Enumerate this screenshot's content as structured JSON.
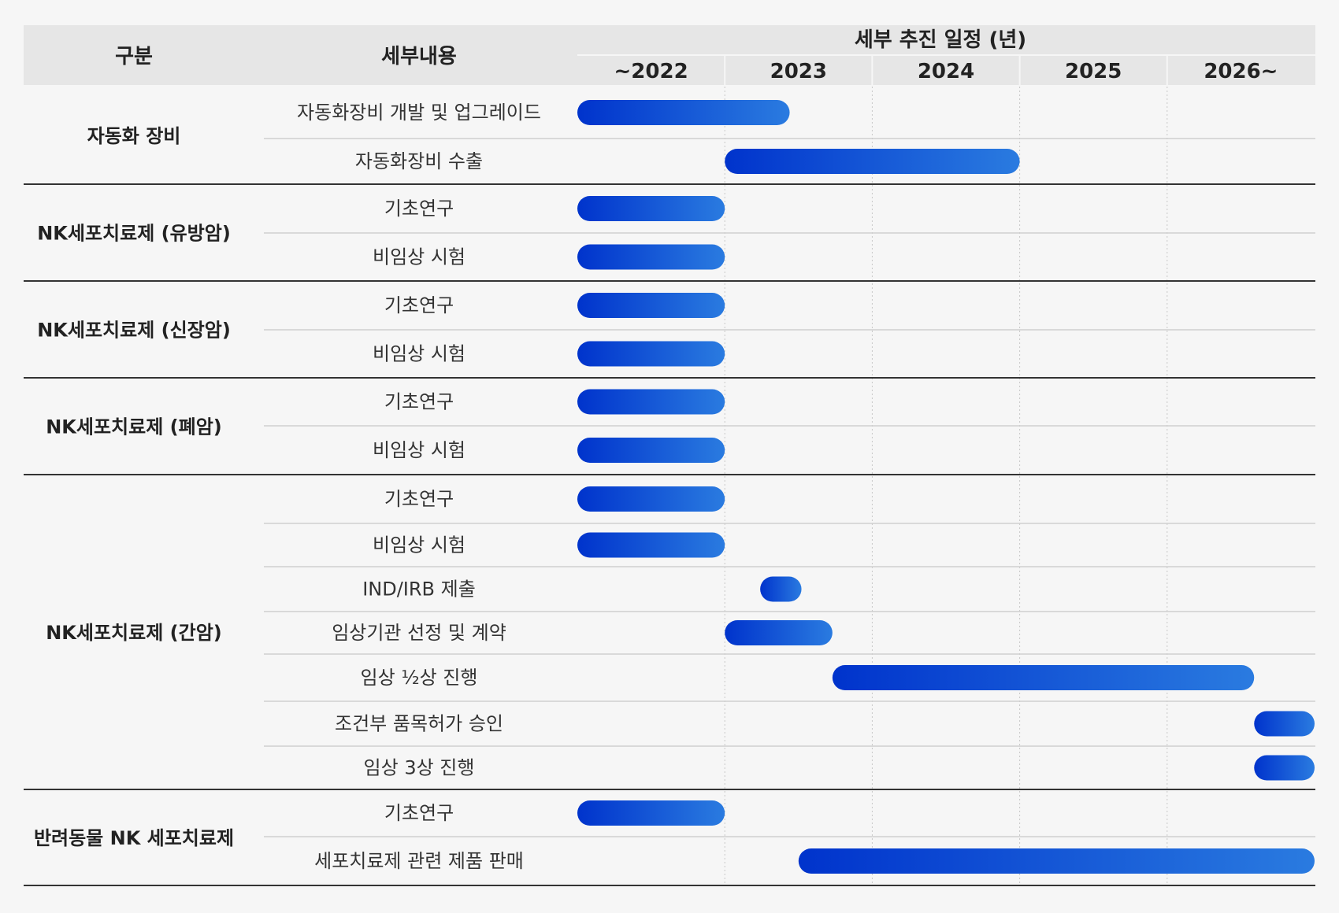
{
  "header": {
    "category_label": "구분",
    "detail_label": "세부내용",
    "schedule_label": "세부 추진 일정 (년)"
  },
  "colors": {
    "bar_start": "#0033cc",
    "bar_end": "#2a7be0",
    "header_bg": "#e6e6e6",
    "page_bg": "#f6f6f6",
    "group_line": "#333333",
    "row_line": "#cfcfcf"
  },
  "chart_data": {
    "type": "gantt",
    "x_axis": [
      "~2022",
      "2023",
      "2024",
      "2025",
      "2026~"
    ],
    "groups": [
      {
        "name": "자동화 장비",
        "tasks": [
          {
            "name": "자동화장비 개발 및 업그레이드",
            "start": 0,
            "end": 1.44
          },
          {
            "name": "자동화장비 수출",
            "start": 1.0,
            "end": 3.0
          }
        ]
      },
      {
        "name": "NK세포치료제 (유방암)",
        "tasks": [
          {
            "name": "기초연구",
            "start": 0,
            "end": 1.0
          },
          {
            "name": "비임상 시험",
            "start": 0,
            "end": 1.0
          }
        ]
      },
      {
        "name": "NK세포치료제 (신장암)",
        "tasks": [
          {
            "name": "기초연구",
            "start": 0,
            "end": 1.0
          },
          {
            "name": "비임상 시험",
            "start": 0,
            "end": 1.0
          }
        ]
      },
      {
        "name": "NK세포치료제 (폐암)",
        "tasks": [
          {
            "name": "기초연구",
            "start": 0,
            "end": 1.0
          },
          {
            "name": "비임상 시험",
            "start": 0,
            "end": 1.0
          }
        ]
      },
      {
        "name": "NK세포치료제 (간암)",
        "tasks": [
          {
            "name": "기초연구",
            "start": 0,
            "end": 1.0
          },
          {
            "name": "비임상 시험",
            "start": 0,
            "end": 1.0
          },
          {
            "name": "IND/IRB 제출",
            "start": 1.24,
            "end": 1.52
          },
          {
            "name": "임상기관 선정 및 계약",
            "start": 1.0,
            "end": 1.73
          },
          {
            "name": "임상 ½상 진행",
            "start": 1.73,
            "end": 4.59
          },
          {
            "name": "조건부 품목허가 승인",
            "start": 4.59,
            "end": 5.0
          },
          {
            "name": "임상 3상 진행",
            "start": 4.59,
            "end": 5.0
          }
        ]
      },
      {
        "name": "반려동물 NK 세포치료제",
        "tasks": [
          {
            "name": "기초연구",
            "start": 0,
            "end": 1.0
          },
          {
            "name": "세포치료제 관련 제품 판매",
            "start": 1.5,
            "end": 5.0
          }
        ]
      }
    ]
  }
}
